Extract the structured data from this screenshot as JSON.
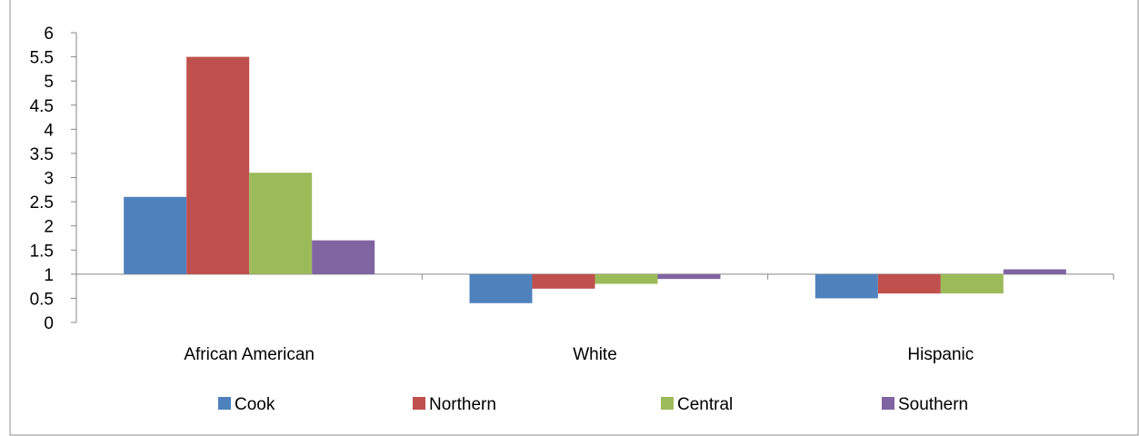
{
  "chart_data": {
    "type": "bar",
    "title": "",
    "xlabel": "",
    "ylabel": "",
    "ylim": [
      0,
      6
    ],
    "baseline": 1,
    "yticks": [
      "0",
      "0.5",
      "1",
      "1.5",
      "2",
      "2.5",
      "3",
      "3.5",
      "4",
      "4.5",
      "5",
      "5.5",
      "6"
    ],
    "categories": [
      "African American",
      "White",
      "Hispanic"
    ],
    "series": [
      {
        "name": "Cook",
        "color": "#4F81BD",
        "values": [
          2.6,
          0.4,
          0.5
        ]
      },
      {
        "name": "Northern",
        "color": "#C0504D",
        "values": [
          5.5,
          0.7,
          0.6
        ]
      },
      {
        "name": "Central",
        "color": "#9BBB59",
        "values": [
          3.1,
          0.8,
          0.6
        ]
      },
      {
        "name": "Southern",
        "color": "#8064A2",
        "values": [
          1.7,
          0.9,
          1.1
        ]
      }
    ],
    "legend_position": "bottom",
    "grid": false
  }
}
